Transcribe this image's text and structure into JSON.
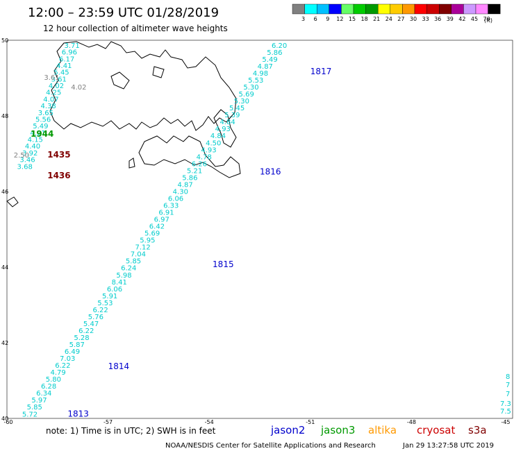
{
  "header": {
    "title": "12:00 – 23:59 UTC 01/28/2019",
    "subtitle": "12 hour collection of altimeter wave heights"
  },
  "legend": {
    "unit_label": "(ft)",
    "bins": [
      {
        "label": "3",
        "color": "#808080"
      },
      {
        "label": "6",
        "color": "#00ffff"
      },
      {
        "label": "9",
        "color": "#00c0ff"
      },
      {
        "label": "12",
        "color": "#0000ff"
      },
      {
        "label": "15",
        "color": "#66ff66"
      },
      {
        "label": "18",
        "color": "#00cc00"
      },
      {
        "label": "21",
        "color": "#009900"
      },
      {
        "label": "24",
        "color": "#ffff00"
      },
      {
        "label": "27",
        "color": "#ffcc00"
      },
      {
        "label": "30",
        "color": "#ff9900"
      },
      {
        "label": "33",
        "color": "#ff0000"
      },
      {
        "label": "36",
        "color": "#cc0000"
      },
      {
        "label": "39",
        "color": "#800000"
      },
      {
        "label": "42",
        "color": "#aa0099"
      },
      {
        "label": "45",
        "color": "#cc99ff"
      },
      {
        "label": "70",
        "color": "#ff88ff"
      },
      {
        "label": "",
        "color": "#000000"
      }
    ]
  },
  "axes": {
    "lat_labels": [
      "50",
      "48",
      "46",
      "44",
      "42",
      "40"
    ],
    "lon_labels": [
      "-60",
      "-57",
      "-54",
      "-51",
      "-48",
      "-45"
    ]
  },
  "colors": {
    "jason2": "#0000cc",
    "jason3": "#009900",
    "altika": "#ff9900",
    "cryosat": "#cc0000",
    "s3a": "#800000",
    "swh_cyan": "#00cccc",
    "swh_gray": "#808080",
    "coast": "#000000"
  },
  "tracks": [
    {
      "name": "jason2-track-1813-1817",
      "color_key": "swh_cyan",
      "values": [
        "5.72",
        "5.85",
        "5.97",
        "6.34",
        "6.28",
        "5.80",
        "4.79",
        "6.22",
        "7.03",
        "6.49",
        "5.87",
        "5.28",
        "6.22",
        "5.47",
        "5.76",
        "6.22",
        "5.53",
        "5.91",
        "6.06",
        "8.41",
        "5.98",
        "6.24",
        "5.85",
        "7.04",
        "7.12",
        "5.95",
        "5.69",
        "6.42",
        "6.97",
        "6.91",
        "6.33",
        "6.06",
        "4.30",
        "4.87",
        "5.86",
        "5.21",
        "6.26",
        "4.78",
        "4.93",
        "4.50",
        "4.84",
        "4.93",
        "4.84",
        "5.39",
        "5.45",
        "5.30",
        "5.69",
        "5.30",
        "5.53",
        "4.98",
        "4.87",
        "5.49",
        "5.86",
        "6.20"
      ],
      "start": {
        "lon": -59.55,
        "lat": 40.05
      },
      "end": {
        "lon": -52.15,
        "lat": 49.8
      }
    },
    {
      "name": "coastal-track-west",
      "color_key": "swh_cyan",
      "values": [
        "3.71",
        "6.96",
        "6.17",
        "4.41",
        "5.45",
        "3.61",
        "4.02",
        "4.25",
        "4.07",
        "4.38",
        "3.65",
        "5.56",
        "5.49",
        "4.21",
        "4.15",
        "4.40",
        "3.92",
        "3.46",
        "3.68"
      ],
      "gray_values": [
        "3.61",
        "4.02",
        "2.50"
      ],
      "start": {
        "lon": -58.3,
        "lat": 49.8
      },
      "end": {
        "lon": -59.7,
        "lat": 46.6
      }
    }
  ],
  "pass_labels": [
    {
      "text": "1817",
      "sat": "jason2"
    },
    {
      "text": "1816",
      "sat": "jason2"
    },
    {
      "text": "1815",
      "sat": "jason2"
    },
    {
      "text": "1814",
      "sat": "jason2"
    },
    {
      "text": "1813",
      "sat": "jason2"
    },
    {
      "text": "1944",
      "sat": "jason3"
    },
    {
      "text": "1435",
      "sat": "s3a"
    },
    {
      "text": "1436",
      "sat": "s3a"
    }
  ],
  "footer": {
    "note": "note:  1) Time is in UTC;  2) SWH is in feet",
    "satellites": [
      {
        "name": "jason2",
        "color_key": "jason2"
      },
      {
        "name": "jason3",
        "color_key": "jason3"
      },
      {
        "name": "altika",
        "color_key": "altika"
      },
      {
        "name": "cryosat",
        "color_key": "cryosat"
      },
      {
        "name": "s3a",
        "color_key": "s3a"
      }
    ],
    "credit": "NOAA/NESDIS Center for Satellite Applications and Research",
    "timestamp": "Jan 29 13:27:58 UTC 2019"
  },
  "right_edge_values": [
    "8",
    "7",
    "7",
    "7.3",
    "7.5"
  ]
}
